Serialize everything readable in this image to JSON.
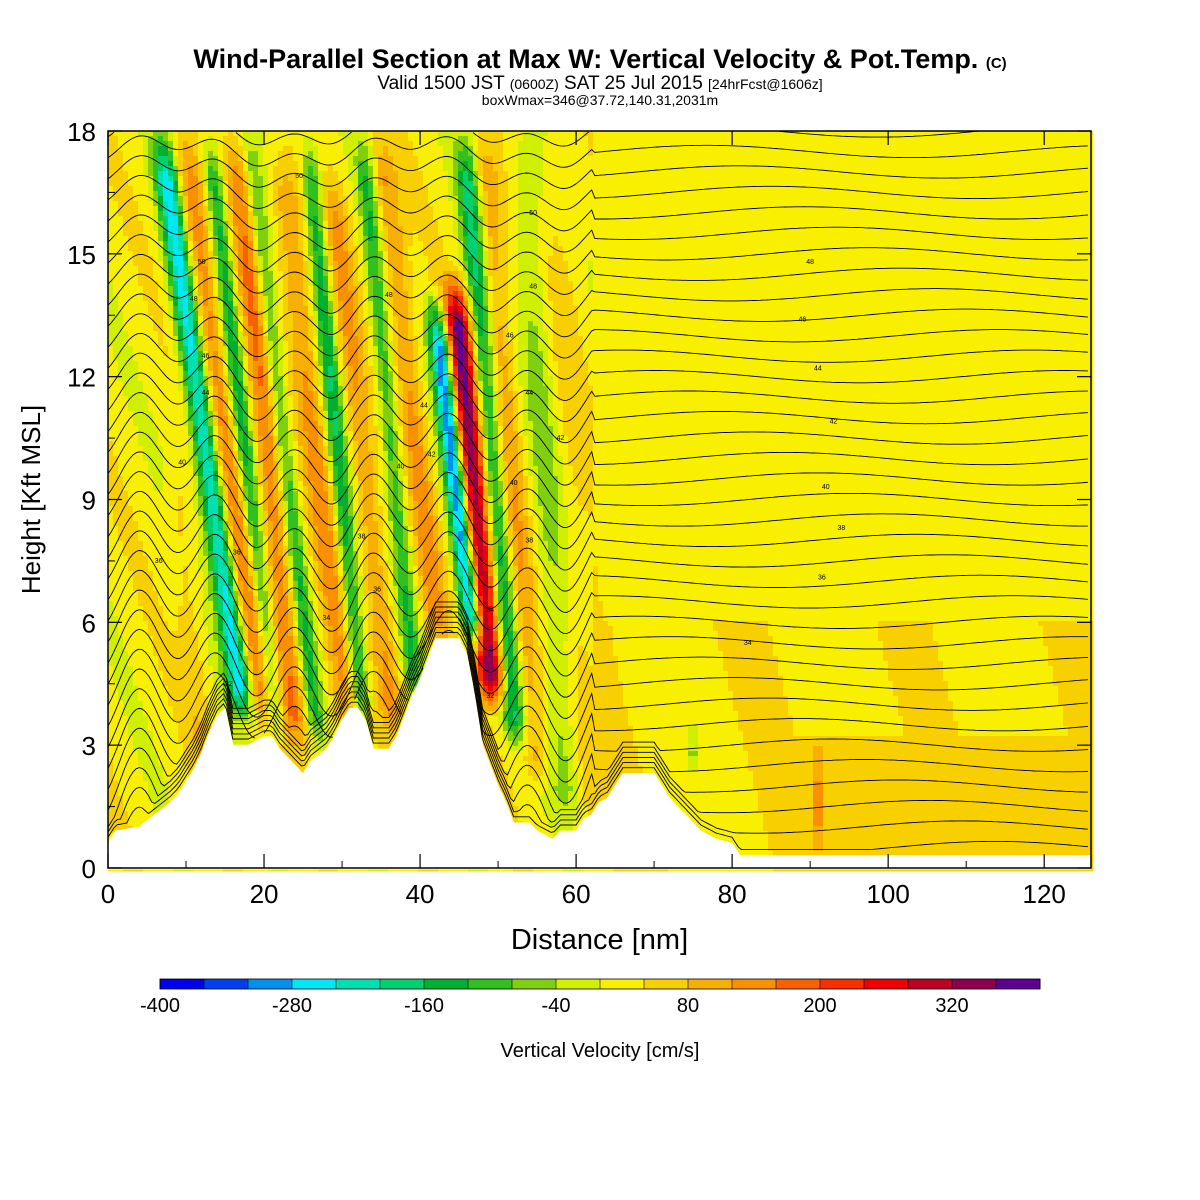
{
  "header": {
    "title": "Wind-Parallel Section at Max W: Vertical Velocity & Pot.Temp.",
    "copyright": "(C)",
    "valid_prefix": "Valid 1500 JST",
    "valid_utc": "(0600Z)",
    "valid_date": "SAT 25 Jul 2015",
    "forecast": "[24hrFcst@1606z]",
    "boxinfo": "boxWmax=346@37.72,140.31,2031m"
  },
  "chart_data": {
    "type": "heatmap",
    "title": "Wind-Parallel Section at Max W: Vertical Velocity & Pot.Temp.",
    "xlabel": "Distance [nm]",
    "ylabel": "Height [Kft MSL]",
    "xlim": [
      0,
      126
    ],
    "ylim": [
      0,
      18
    ],
    "x_ticks": [
      "0",
      "20",
      "40",
      "60",
      "80",
      "100",
      "120"
    ],
    "y_ticks": [
      "0",
      "3",
      "6",
      "9",
      "12",
      "15",
      "18"
    ],
    "colorbar": {
      "label": "Vertical Velocity [cm/s]",
      "min": -400,
      "max": 400,
      "step": 40,
      "tick_labels": [
        "-400",
        "-280",
        "-160",
        "-40",
        "80",
        "200",
        "320"
      ],
      "colors": [
        "#0000f0",
        "#0040f0",
        "#0090f0",
        "#00e8f8",
        "#00e0b0",
        "#00d070",
        "#00b030",
        "#30c020",
        "#80d010",
        "#d0f000",
        "#f8f000",
        "#f8d000",
        "#f8b000",
        "#f89000",
        "#f86000",
        "#f83000",
        "#f00000",
        "#c00020",
        "#900050",
        "#600090"
      ]
    },
    "terrain_kft": [
      [
        0,
        0.6
      ],
      [
        1,
        0.9
      ],
      [
        4,
        1.0
      ],
      [
        6,
        1.3
      ],
      [
        8,
        1.6
      ],
      [
        9,
        1.8
      ],
      [
        10,
        2.1
      ],
      [
        11,
        2.4
      ],
      [
        12,
        2.8
      ],
      [
        13,
        3.3
      ],
      [
        14,
        3.7
      ],
      [
        15,
        3.9
      ],
      [
        16,
        3.0
      ],
      [
        18,
        3.0
      ],
      [
        19,
        3.1
      ],
      [
        20,
        3.2
      ],
      [
        21,
        3.2
      ],
      [
        22,
        2.9
      ],
      [
        24,
        2.5
      ],
      [
        25,
        2.3
      ],
      [
        26,
        2.6
      ],
      [
        28,
        2.9
      ],
      [
        29,
        3.2
      ],
      [
        30,
        3.6
      ],
      [
        31,
        3.9
      ],
      [
        32,
        3.9
      ],
      [
        33,
        3.6
      ],
      [
        34,
        2.9
      ],
      [
        36,
        2.9
      ],
      [
        37,
        3.2
      ],
      [
        38,
        3.7
      ],
      [
        39,
        4.2
      ],
      [
        40,
        4.6
      ],
      [
        41,
        5.1
      ],
      [
        42,
        5.6
      ],
      [
        45,
        5.6
      ],
      [
        46,
        5.2
      ],
      [
        47,
        4.2
      ],
      [
        48,
        3.0
      ],
      [
        49,
        2.5
      ],
      [
        50,
        2.0
      ],
      [
        51,
        1.6
      ],
      [
        52,
        1.1
      ],
      [
        54,
        1.1
      ],
      [
        55,
        0.9
      ],
      [
        57,
        0.7
      ],
      [
        58,
        0.9
      ],
      [
        60,
        0.9
      ],
      [
        61,
        1.2
      ],
      [
        62,
        1.3
      ],
      [
        63,
        1.6
      ],
      [
        64,
        1.7
      ],
      [
        65,
        2.0
      ],
      [
        66,
        2.3
      ],
      [
        70,
        2.3
      ],
      [
        71,
        2.0
      ],
      [
        72,
        1.7
      ],
      [
        73,
        1.5
      ],
      [
        74,
        1.3
      ],
      [
        75,
        1.1
      ],
      [
        76,
        0.9
      ],
      [
        78,
        0.7
      ],
      [
        80,
        0.6
      ],
      [
        81,
        0.3
      ],
      [
        126,
        0.3
      ]
    ],
    "features": [
      {
        "x": 15.0,
        "tilt": -0.75,
        "width": 1.6,
        "w": -300,
        "zmin": 3.7,
        "zmax": 18
      },
      {
        "x": 17.5,
        "tilt": -0.75,
        "width": 2.0,
        "w": 150,
        "zmin": 3.5,
        "zmax": 18
      },
      {
        "x": 19.5,
        "tilt": -0.6,
        "width": 1.3,
        "w": -180,
        "zmin": 3.2,
        "zmax": 18
      },
      {
        "x": 22.0,
        "tilt": -0.5,
        "width": 2.0,
        "w": 140,
        "zmin": 3.0,
        "zmax": 18
      },
      {
        "x": 24.5,
        "tilt": -0.6,
        "width": 1.2,
        "w": -150,
        "zmin": 3.0,
        "zmax": 18
      },
      {
        "x": 28.5,
        "tilt": -0.6,
        "width": 1.8,
        "w": 110,
        "zmin": 3.2,
        "zmax": 17.5
      },
      {
        "x": 31.0,
        "tilt": -0.5,
        "width": 1.2,
        "w": -170,
        "zmin": 3.5,
        "zmax": 18
      },
      {
        "x": 34.5,
        "tilt": -0.6,
        "width": 1.6,
        "w": 100,
        "zmin": 3.2,
        "zmax": 17
      },
      {
        "x": 38.0,
        "tilt": -0.5,
        "width": 1.2,
        "w": -130,
        "zmin": 4.2,
        "zmax": 18
      },
      {
        "x": 41.5,
        "tilt": -0.6,
        "width": 1.6,
        "w": 110,
        "zmin": 5.4,
        "zmax": 18
      },
      {
        "x": 46.0,
        "tilt": -0.6,
        "width": 1.3,
        "w": -360,
        "zmin": 5.4,
        "zmax": 14
      },
      {
        "x": 48.0,
        "tilt": -0.5,
        "width": 1.8,
        "w": 346,
        "zmin": 4.0,
        "zmax": 14.5
      },
      {
        "x": 50.5,
        "tilt": -0.45,
        "width": 1.4,
        "w": -190,
        "zmin": 3.0,
        "zmax": 18
      },
      {
        "x": 53.0,
        "tilt": -0.45,
        "width": 1.6,
        "w": 90,
        "zmin": 2.0,
        "zmax": 18
      },
      {
        "x": 57.0,
        "tilt": -0.35,
        "width": 2.0,
        "w": -70,
        "zmin": 1.2,
        "zmax": 18
      },
      {
        "x": 60.5,
        "tilt": -0.3,
        "width": 2.5,
        "w": 30,
        "zmin": 1.0,
        "zmax": 18
      },
      {
        "x": 10.0,
        "tilt": -0.5,
        "width": 1.5,
        "w": 45,
        "zmin": 1.6,
        "zmax": 10
      },
      {
        "x": 91.0,
        "tilt": 0.0,
        "width": 0.6,
        "w": 90,
        "zmin": 0.5,
        "zmax": 3.0
      },
      {
        "x": 75.0,
        "tilt": 0.0,
        "width": 0.6,
        "w": -120,
        "zmin": 2.5,
        "zmax": 3.4
      }
    ],
    "contour_labels": [
      {
        "text": "50",
        "x": 24.5,
        "y": 16.9
      },
      {
        "text": "50",
        "x": 54.5,
        "y": 16.0
      },
      {
        "text": "50",
        "x": 12.0,
        "y": 14.8
      },
      {
        "text": "48",
        "x": 11.0,
        "y": 13.9
      },
      {
        "text": "48",
        "x": 36.0,
        "y": 14.0
      },
      {
        "text": "48",
        "x": 54.5,
        "y": 14.2
      },
      {
        "text": "48",
        "x": 90.0,
        "y": 14.8
      },
      {
        "text": "46",
        "x": 89.0,
        "y": 13.4
      },
      {
        "text": "46",
        "x": 12.5,
        "y": 12.5
      },
      {
        "text": "46",
        "x": 51.5,
        "y": 13.0
      },
      {
        "text": "44",
        "x": 91.0,
        "y": 12.2
      },
      {
        "text": "44",
        "x": 12.5,
        "y": 11.6
      },
      {
        "text": "44",
        "x": 40.5,
        "y": 11.3
      },
      {
        "text": "44",
        "x": 54.0,
        "y": 11.6
      },
      {
        "text": "42",
        "x": 93.0,
        "y": 10.9
      },
      {
        "text": "42",
        "x": 41.5,
        "y": 10.1
      },
      {
        "text": "42",
        "x": 58.0,
        "y": 10.5
      },
      {
        "text": "40",
        "x": 9.5,
        "y": 9.9
      },
      {
        "text": "40",
        "x": 37.5,
        "y": 9.8
      },
      {
        "text": "40",
        "x": 52.0,
        "y": 9.4
      },
      {
        "text": "40",
        "x": 92.0,
        "y": 9.3
      },
      {
        "text": "38",
        "x": 94.0,
        "y": 8.3
      },
      {
        "text": "38",
        "x": 32.5,
        "y": 8.1
      },
      {
        "text": "38",
        "x": 54.0,
        "y": 8.0
      },
      {
        "text": "36",
        "x": 6.5,
        "y": 7.5
      },
      {
        "text": "36",
        "x": 16.5,
        "y": 7.7
      },
      {
        "text": "36",
        "x": 34.5,
        "y": 6.8
      },
      {
        "text": "36",
        "x": 91.5,
        "y": 7.1
      },
      {
        "text": "34",
        "x": 28.0,
        "y": 6.1
      },
      {
        "text": "34",
        "x": 49.0,
        "y": 6.3
      },
      {
        "text": "34",
        "x": 82.0,
        "y": 5.5
      },
      {
        "text": "32",
        "x": 15.5,
        "y": 4.5
      },
      {
        "text": "32",
        "x": 49.0,
        "y": 4.2
      }
    ]
  }
}
